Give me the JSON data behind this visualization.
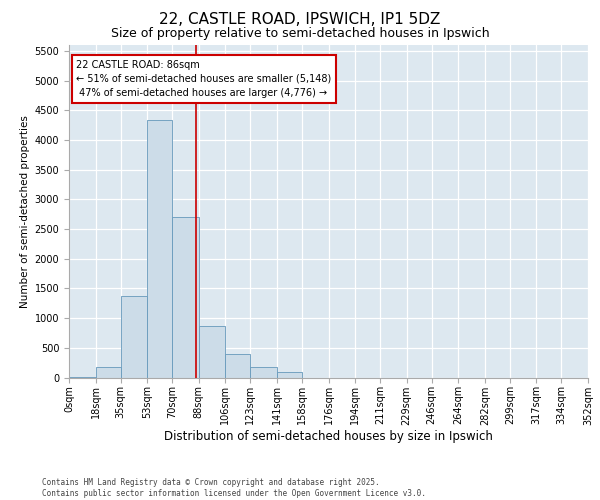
{
  "title": "22, CASTLE ROAD, IPSWICH, IP1 5DZ",
  "subtitle": "Size of property relative to semi-detached houses in Ipswich",
  "xlabel": "Distribution of semi-detached houses by size in Ipswich",
  "ylabel": "Number of semi-detached properties",
  "property_size": 86,
  "pct_smaller": 51,
  "pct_larger": 47,
  "count_smaller": 5148,
  "count_larger": 4776,
  "bar_color": "#ccdce8",
  "bar_edge_color": "#6699bb",
  "vline_color": "#cc0000",
  "annotation_box_color": "#cc0000",
  "background_color": "#dde8f0",
  "grid_color": "#ffffff",
  "bin_edges": [
    0,
    18,
    35,
    53,
    70,
    88,
    106,
    123,
    141,
    158,
    176,
    194,
    211,
    229,
    246,
    264,
    282,
    299,
    317,
    334,
    352
  ],
  "bin_labels": [
    "0sqm",
    "18sqm",
    "35sqm",
    "53sqm",
    "70sqm",
    "88sqm",
    "106sqm",
    "123sqm",
    "141sqm",
    "158sqm",
    "176sqm",
    "194sqm",
    "211sqm",
    "229sqm",
    "246sqm",
    "264sqm",
    "282sqm",
    "299sqm",
    "317sqm",
    "334sqm",
    "352sqm"
  ],
  "bar_heights": [
    5,
    175,
    1380,
    4340,
    2700,
    870,
    400,
    170,
    100,
    0,
    0,
    0,
    0,
    0,
    0,
    0,
    0,
    0,
    0,
    0
  ],
  "ylim": [
    0,
    5600
  ],
  "yticks": [
    0,
    500,
    1000,
    1500,
    2000,
    2500,
    3000,
    3500,
    4000,
    4500,
    5000,
    5500
  ],
  "footer_text": "Contains HM Land Registry data © Crown copyright and database right 2025.\nContains public sector information licensed under the Open Government Licence v3.0.",
  "title_fontsize": 11,
  "subtitle_fontsize": 9,
  "ylabel_fontsize": 7.5,
  "xlabel_fontsize": 8.5,
  "tick_fontsize": 7,
  "footer_fontsize": 5.5,
  "annot_fontsize": 7
}
